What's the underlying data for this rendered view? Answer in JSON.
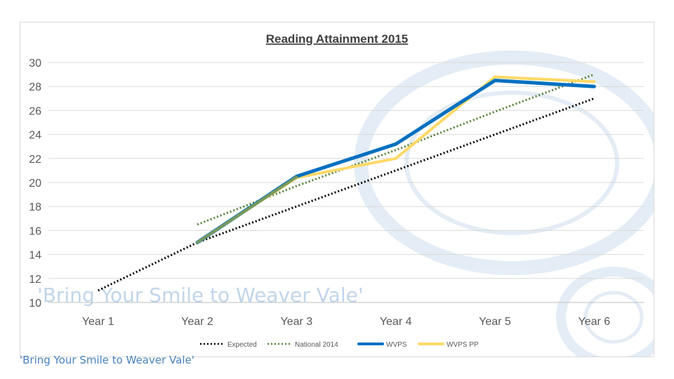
{
  "chart_data": {
    "type": "line",
    "title": "Reading Attainment 2015",
    "categories": [
      "Year 1",
      "Year 2",
      "Year 3",
      "Year 4",
      "Year 5",
      "Year 6"
    ],
    "ylim": [
      10,
      30
    ],
    "yticks": [
      10,
      12,
      14,
      16,
      18,
      20,
      22,
      24,
      26,
      28,
      30
    ],
    "grid": true,
    "legend_position": "bottom",
    "series": [
      {
        "name": "Expected",
        "style": "dotted",
        "color": "#000000",
        "values": [
          11,
          15,
          18,
          21,
          24,
          27
        ]
      },
      {
        "name": "National 2014",
        "style": "dotted",
        "color": "#548235",
        "values": [
          null,
          16.5,
          19.7,
          22.7,
          25.9,
          29
        ]
      },
      {
        "name": "WVPS",
        "style": "solid",
        "color": "#0070c0",
        "values": [
          null,
          15,
          20.5,
          23.2,
          28.5,
          28
        ]
      },
      {
        "name": "WVPS PP",
        "style": "solid",
        "color": "#ffd966",
        "values": [
          null,
          15,
          20.4,
          22,
          28.8,
          28.4
        ]
      }
    ]
  },
  "slogan": "'Bring Your Smile to Weaver Vale'",
  "footer": {
    "slogan": "'Bring Your Smile to Weaver Vale'"
  }
}
